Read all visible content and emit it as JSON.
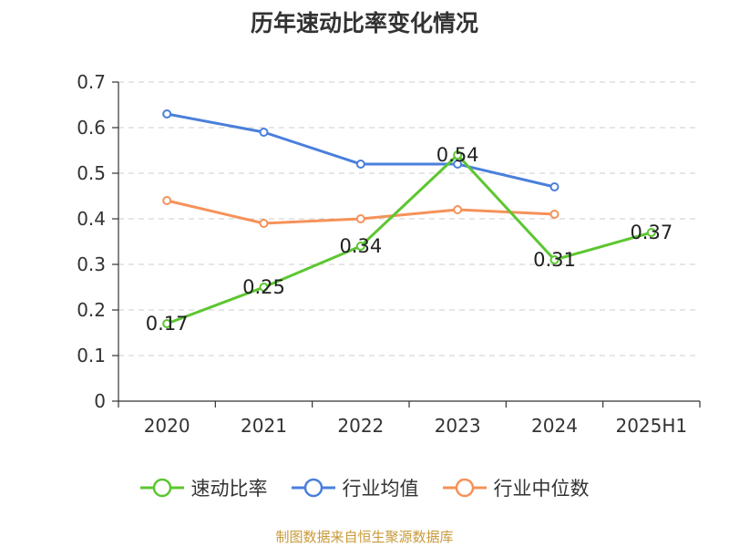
{
  "chart_data": {
    "type": "line",
    "title": "历年速动比率变化情况",
    "categories": [
      "2020",
      "2021",
      "2022",
      "2023",
      "2024",
      "2025H1"
    ],
    "ylim": [
      0,
      0.7
    ],
    "yticks": [
      "0",
      "0.1",
      "0.2",
      "0.3",
      "0.4",
      "0.5",
      "0.6",
      "0.7"
    ],
    "grid": true,
    "legend_position": "bottom",
    "series": [
      {
        "name": "速动比率",
        "color": "#5cc630",
        "values": [
          0.17,
          0.25,
          0.34,
          0.54,
          0.31,
          0.37
        ],
        "data_labels": [
          "0.17",
          "0.25",
          "0.34",
          "0.54",
          "0.31",
          "0.37"
        ]
      },
      {
        "name": "行业均值",
        "color": "#4a7fdb",
        "values": [
          0.63,
          0.59,
          0.52,
          0.52,
          0.47,
          null
        ]
      },
      {
        "name": "行业中位数",
        "color": "#f5925a",
        "values": [
          0.44,
          0.39,
          0.4,
          0.42,
          0.41,
          null
        ]
      }
    ]
  },
  "source": "制图数据来自恒生聚源数据库"
}
